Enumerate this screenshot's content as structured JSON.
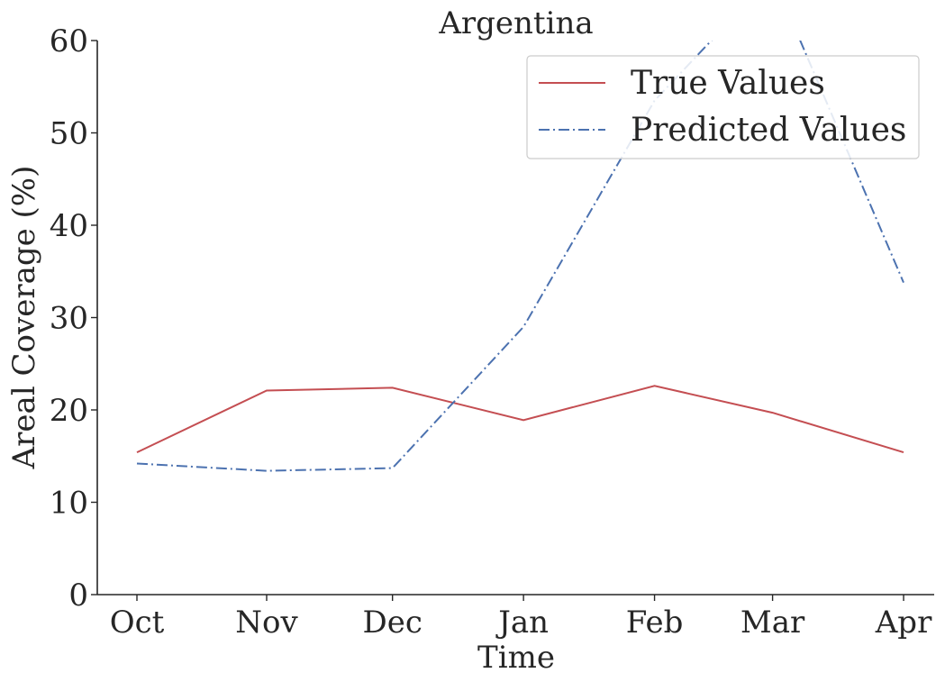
{
  "chart_data": {
    "type": "line",
    "title": "Argentina",
    "xlabel": "Time",
    "ylabel": "Areal Coverage (%)",
    "categories": [
      "Oct",
      "Nov",
      "Dec",
      "Jan",
      "Feb",
      "Mar",
      "Apr"
    ],
    "x_positions": [
      0,
      1,
      1.97,
      2.98,
      3.99,
      4.9,
      5.91
    ],
    "ylim": [
      0,
      60
    ],
    "yticks": [
      0,
      10,
      20,
      30,
      40,
      50,
      60
    ],
    "grid": false,
    "legend_position": "top-right",
    "series": [
      {
        "name": "True Values",
        "values": [
          15.4,
          22.1,
          22.4,
          18.9,
          22.6,
          19.7,
          15.4
        ],
        "color": "#c44e52",
        "linestyle": "solid"
      },
      {
        "name": "Predicted Values",
        "values": [
          14.2,
          13.4,
          13.7,
          29.0,
          53.5,
          67.0,
          33.8
        ],
        "color": "#4c72b0",
        "linestyle": "dashdot"
      }
    ]
  }
}
